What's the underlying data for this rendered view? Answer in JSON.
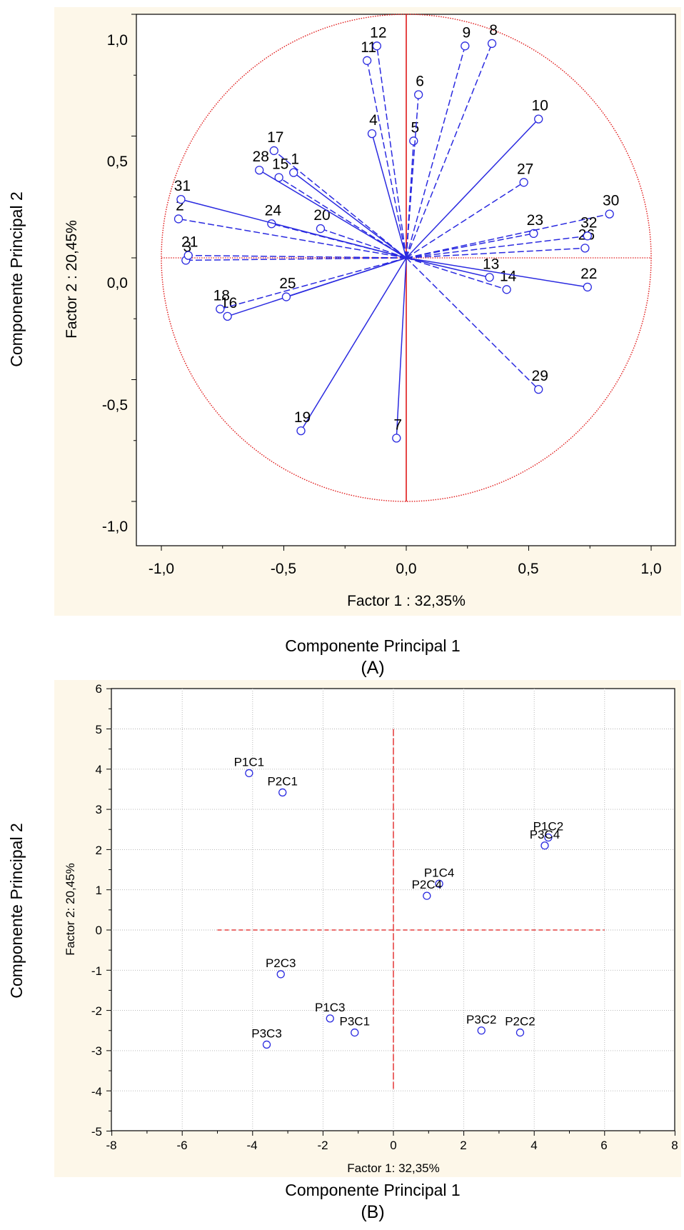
{
  "chart_data": [
    {
      "type": "scatter",
      "panel_caption": "(A)",
      "outer_xlabel": "Componente Principal 1",
      "outer_ylabel": "Componente Principal 2",
      "xlabel": "Factor 1 : 32,35%",
      "ylabel": "Factor 2 : 20,45%",
      "xlim": [
        -1.1,
        1.1
      ],
      "ylim": [
        -1.1,
        1.1
      ],
      "xticks": [
        "-1,0",
        "-0,5",
        "0,0",
        "0,5",
        "1,0"
      ],
      "yticks": [
        "1,0",
        "0,5",
        "0,0",
        "-0,5",
        "-1,0"
      ],
      "unit_circle": true,
      "grid": false,
      "colors": {
        "points": "#2a2ae0",
        "reference": "#e01818",
        "plot_background": "#ffffff",
        "frame_background": "#fdf7e9"
      },
      "points": [
        {
          "label": "1",
          "x": -0.46,
          "y": 0.35
        },
        {
          "label": "2",
          "x": -0.93,
          "y": 0.16
        },
        {
          "label": "3",
          "x": -0.9,
          "y": -0.01
        },
        {
          "label": "4",
          "x": -0.14,
          "y": 0.51
        },
        {
          "label": "5",
          "x": 0.03,
          "y": 0.48
        },
        {
          "label": "6",
          "x": 0.05,
          "y": 0.67
        },
        {
          "label": "7",
          "x": -0.04,
          "y": -0.74
        },
        {
          "label": "8",
          "x": 0.35,
          "y": 0.88
        },
        {
          "label": "9",
          "x": 0.24,
          "y": 0.87
        },
        {
          "label": "10",
          "x": 0.54,
          "y": 0.57
        },
        {
          "label": "11",
          "x": -0.16,
          "y": 0.81
        },
        {
          "label": "12",
          "x": -0.12,
          "y": 0.87
        },
        {
          "label": "13",
          "x": 0.34,
          "y": -0.08
        },
        {
          "label": "14",
          "x": 0.41,
          "y": -0.13
        },
        {
          "label": "15",
          "x": -0.52,
          "y": 0.33
        },
        {
          "label": "16",
          "x": -0.73,
          "y": -0.24
        },
        {
          "label": "17",
          "x": -0.54,
          "y": 0.44
        },
        {
          "label": "18",
          "x": -0.76,
          "y": -0.21
        },
        {
          "label": "19",
          "x": -0.43,
          "y": -0.71
        },
        {
          "label": "20",
          "x": -0.35,
          "y": 0.12
        },
        {
          "label": "21",
          "x": -0.89,
          "y": 0.01
        },
        {
          "label": "22",
          "x": 0.74,
          "y": -0.12
        },
        {
          "label": "23",
          "x": 0.52,
          "y": 0.1
        },
        {
          "label": "24",
          "x": -0.55,
          "y": 0.14
        },
        {
          "label": "25",
          "x": -0.49,
          "y": -0.16
        },
        {
          "label": "26",
          "x": 0.73,
          "y": 0.04
        },
        {
          "label": "27",
          "x": 0.48,
          "y": 0.31
        },
        {
          "label": "28",
          "x": -0.6,
          "y": 0.36
        },
        {
          "label": "29",
          "x": 0.54,
          "y": -0.54
        },
        {
          "label": "30",
          "x": 0.83,
          "y": 0.18
        },
        {
          "label": "31",
          "x": -0.92,
          "y": 0.24
        },
        {
          "label": "32",
          "x": 0.74,
          "y": 0.09
        }
      ]
    },
    {
      "type": "scatter",
      "panel_caption": "(B)",
      "outer_xlabel": "Componente Principal 1",
      "outer_ylabel": "Componente Principal 2",
      "xlabel": "Factor 1: 32,35%",
      "ylabel": "Factor 2: 20,45%",
      "xlim": [
        -8,
        8
      ],
      "ylim": [
        -5,
        6
      ],
      "xticks": [
        "-8",
        "-6",
        "-4",
        "-2",
        "0",
        "2",
        "4",
        "6",
        "8"
      ],
      "yticks": [
        "6",
        "5",
        "4",
        "3",
        "2",
        "1",
        "0",
        "-1",
        "-2",
        "-3",
        "-4",
        "-5"
      ],
      "grid": true,
      "colors": {
        "points": "#2a2ae0",
        "reference": "#e01818",
        "plot_background": "#ffffff",
        "frame_background": "#fdf7e9"
      },
      "points": [
        {
          "label": "P1C1",
          "x": -4.1,
          "y": 3.9
        },
        {
          "label": "P2C1",
          "x": -3.15,
          "y": 3.42
        },
        {
          "label": "P1C2",
          "x": 4.4,
          "y": 2.3
        },
        {
          "label": "P3C4",
          "x": 4.3,
          "y": 2.1
        },
        {
          "label": "P1C4",
          "x": 1.3,
          "y": 1.15
        },
        {
          "label": "P2C4",
          "x": 0.95,
          "y": 0.85
        },
        {
          "label": "P2C3",
          "x": -3.2,
          "y": -1.1
        },
        {
          "label": "P1C3",
          "x": -1.8,
          "y": -2.2
        },
        {
          "label": "P3C1",
          "x": -1.1,
          "y": -2.55
        },
        {
          "label": "P3C3",
          "x": -3.6,
          "y": -2.85
        },
        {
          "label": "P3C2",
          "x": 2.5,
          "y": -2.5
        },
        {
          "label": "P2C2",
          "x": 3.6,
          "y": -2.55
        }
      ]
    }
  ]
}
